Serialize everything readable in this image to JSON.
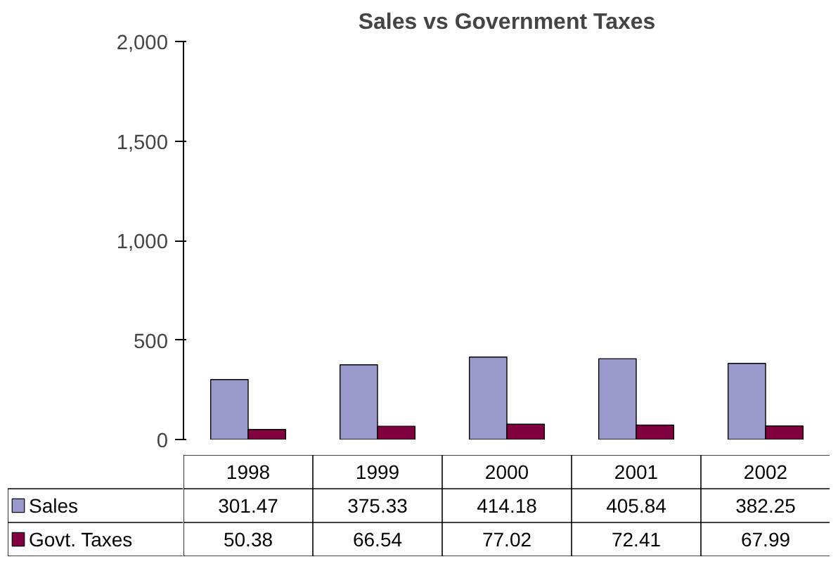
{
  "chart_data": {
    "type": "bar",
    "title": "Sales vs Government Taxes",
    "categories": [
      "1998",
      "1999",
      "2000",
      "2001",
      "2002"
    ],
    "series": [
      {
        "name": "Sales",
        "color": "#9999cc",
        "values": [
          301.47,
          375.33,
          414.18,
          405.84,
          382.25
        ]
      },
      {
        "name": "Govt. Taxes",
        "color": "#800040",
        "values": [
          50.38,
          66.54,
          77.02,
          72.41,
          67.99
        ]
      }
    ],
    "ylim": [
      0,
      2000
    ],
    "yticks": [
      0,
      {
        "value": 500,
        "label": "500"
      },
      {
        "value": 1000,
        "label": "1,000"
      },
      {
        "value": 1500,
        "label": "1,500"
      },
      {
        "value": 2000,
        "label": "2,000"
      }
    ],
    "data_labels": true,
    "legend": "bottom",
    "grid": false
  }
}
